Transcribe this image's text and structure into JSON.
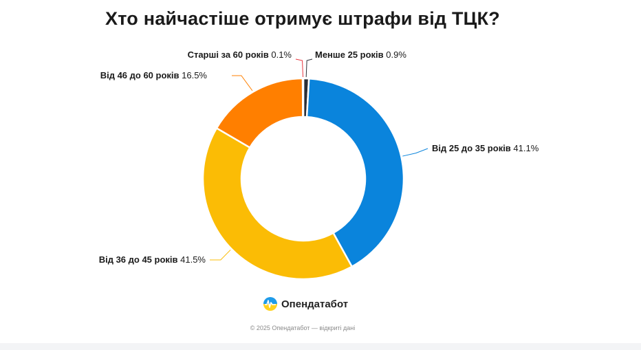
{
  "header": {
    "title": "Хто найчастіше отримує штрафи від ТЦК?"
  },
  "chart_data": {
    "type": "pie",
    "donut": true,
    "slices": [
      {
        "label": "Менше 25 років",
        "value": 0.9,
        "value_text": "0.9%",
        "color": "#2b2f36"
      },
      {
        "label": "Від 25 до 35 років",
        "value": 41.1,
        "value_text": "41.1%",
        "color": "#0a84dc"
      },
      {
        "label": "Від 36 до 45 років",
        "value": 41.5,
        "value_text": "41.5%",
        "color": "#fbbc05"
      },
      {
        "label": "Від 46 до 60 років",
        "value": 16.5,
        "value_text": "16.5%",
        "color": "#ff7f00"
      },
      {
        "label": "Старші за 60 років",
        "value": 0.1,
        "value_text": "0.1%",
        "color": "#e8353d"
      }
    ]
  },
  "brand": {
    "name": "Опендатабот",
    "colors": {
      "top": "#1e9be9",
      "bottom": "#ffd21f"
    }
  },
  "footer": {
    "text": "© 2025 Опендатабот — відкриті дані"
  }
}
